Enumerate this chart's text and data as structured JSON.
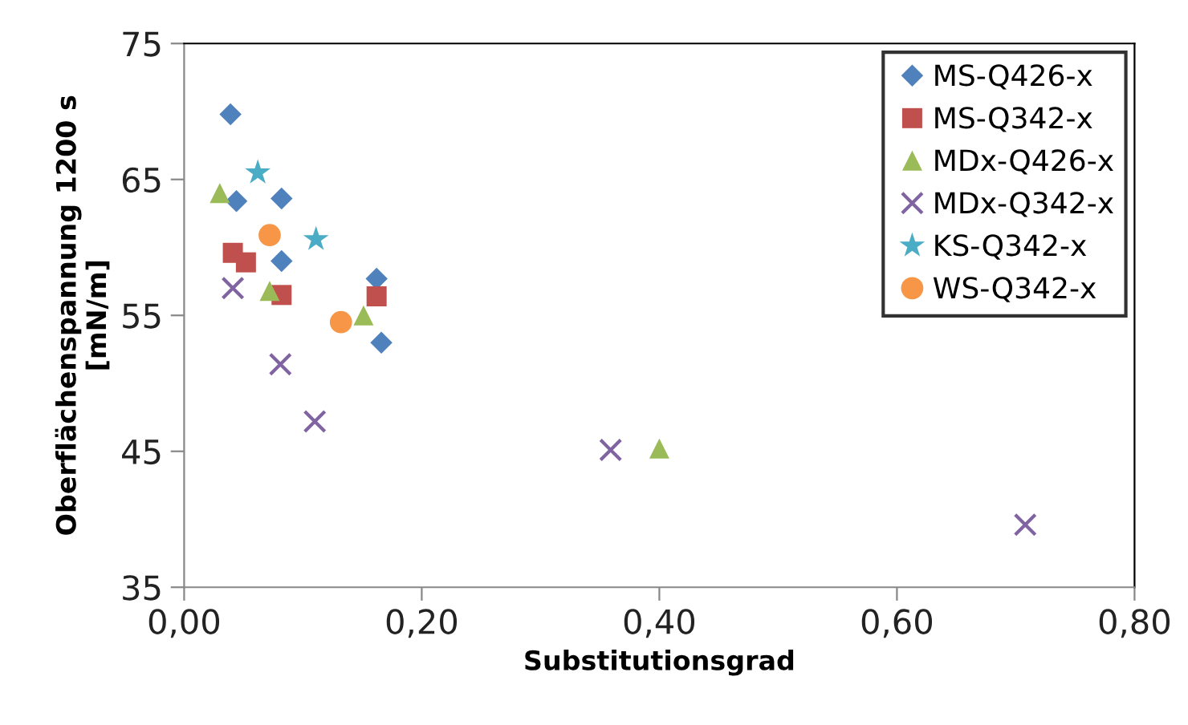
{
  "chart_data": {
    "type": "scatter",
    "xlabel": "Substitutionsgrad",
    "ylabel": "Oberflächenspannung 1200 s\n[mN/m]",
    "xlim": [
      0,
      0.8
    ],
    "xticks": [
      {
        "value": 0,
        "label": "0,00"
      },
      {
        "value": 0.2,
        "label": "0,20"
      },
      {
        "value": 0.4,
        "label": "0,40"
      },
      {
        "value": 0.6,
        "label": "0,60"
      },
      {
        "value": 0.8,
        "label": "0,80"
      }
    ],
    "ylim": [
      35,
      75
    ],
    "yticks": [
      35,
      45,
      55,
      65,
      75
    ],
    "grid": false,
    "legend": "top right",
    "series": [
      {
        "name": "MS-Q426-x",
        "color": "#4f81bd",
        "marker": "diamond",
        "x": [
          0.039,
          0.044,
          0.082,
          0.082,
          0.162,
          0.166
        ],
        "values": [
          69.8,
          63.4,
          63.6,
          59.0,
          57.7,
          53.0
        ]
      },
      {
        "name": "MS-Q342-x",
        "color": "#c0504d",
        "marker": "square",
        "x": [
          0.041,
          0.052,
          0.082,
          0.162
        ],
        "values": [
          59.6,
          58.9,
          56.5,
          56.4
        ]
      },
      {
        "name": "MDx-Q426-x",
        "color": "#9bbb59",
        "marker": "triangle",
        "x": [
          0.03,
          0.072,
          0.151,
          0.4
        ],
        "values": [
          64.0,
          56.8,
          55.0,
          45.2
        ]
      },
      {
        "name": "MDx-Q342-x",
        "color": "#8064a2",
        "marker": "cross",
        "x": [
          0.041,
          0.081,
          0.11,
          0.359,
          0.708
        ],
        "values": [
          57.0,
          51.4,
          47.2,
          45.1,
          39.6
        ]
      },
      {
        "name": "KS-Q342-x",
        "color": "#4bacc6",
        "marker": "star",
        "x": [
          0.062,
          0.111
        ],
        "values": [
          65.5,
          60.6
        ]
      },
      {
        "name": "WS-Q342-x",
        "color": "#f79646",
        "marker": "circle",
        "x": [
          0.072,
          0.132
        ],
        "values": [
          60.9,
          54.5
        ]
      }
    ]
  }
}
